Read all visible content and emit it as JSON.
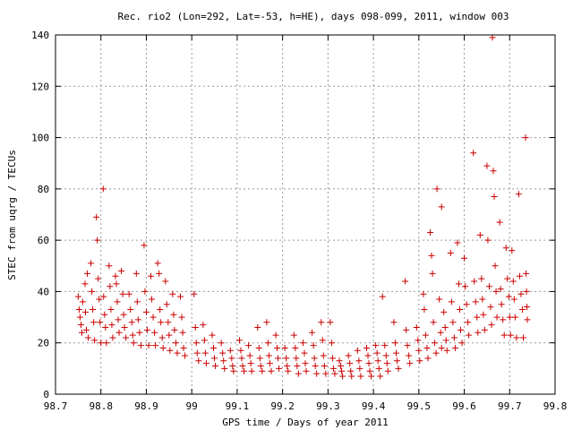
{
  "chart_data": {
    "type": "scatter",
    "title": "Rec. rio2 (Lon=292, Lat=-53, h=HE), days 098-099, 2011, window 003",
    "xlabel": "GPS time / Days of year 2011",
    "ylabel": "STEC from uqrg / TECUs",
    "xlim": [
      98.7,
      99.8
    ],
    "ylim": [
      0,
      140
    ],
    "xticks": [
      "98.7",
      "98.8",
      "98.9",
      "99",
      "99.1",
      "99.2",
      "99.3",
      "99.4",
      "99.5",
      "99.6",
      "99.7",
      "99.8"
    ],
    "yticks": [
      "0",
      "20",
      "40",
      "60",
      "80",
      "100",
      "120",
      "140"
    ],
    "grid": true,
    "marker": "+",
    "color": "#cc0000",
    "points": [
      [
        98.75,
        38
      ],
      [
        98.752,
        33
      ],
      [
        98.754,
        30
      ],
      [
        98.756,
        27
      ],
      [
        98.758,
        24
      ],
      [
        98.76,
        36
      ],
      [
        98.765,
        43
      ],
      [
        98.766,
        32
      ],
      [
        98.768,
        25
      ],
      [
        98.77,
        47
      ],
      [
        98.772,
        22
      ],
      [
        98.778,
        51
      ],
      [
        98.78,
        40
      ],
      [
        98.782,
        33
      ],
      [
        98.784,
        28
      ],
      [
        98.786,
        21
      ],
      [
        98.79,
        69
      ],
      [
        98.792,
        60
      ],
      [
        98.794,
        45
      ],
      [
        98.796,
        37
      ],
      [
        98.798,
        28
      ],
      [
        98.8,
        20
      ],
      [
        98.805,
        80
      ],
      [
        98.806,
        38
      ],
      [
        98.808,
        31
      ],
      [
        98.81,
        26
      ],
      [
        98.812,
        20
      ],
      [
        98.818,
        50
      ],
      [
        98.82,
        42
      ],
      [
        98.822,
        33
      ],
      [
        98.824,
        27
      ],
      [
        98.826,
        22
      ],
      [
        98.832,
        46
      ],
      [
        98.834,
        43
      ],
      [
        98.836,
        36
      ],
      [
        98.838,
        29
      ],
      [
        98.84,
        24
      ],
      [
        98.845,
        48
      ],
      [
        98.848,
        39
      ],
      [
        98.85,
        31
      ],
      [
        98.852,
        26
      ],
      [
        98.855,
        22
      ],
      [
        98.862,
        39
      ],
      [
        98.865,
        33
      ],
      [
        98.868,
        28
      ],
      [
        98.87,
        23
      ],
      [
        98.872,
        20
      ],
      [
        98.878,
        47
      ],
      [
        98.88,
        36
      ],
      [
        98.882,
        29
      ],
      [
        98.885,
        24
      ],
      [
        98.888,
        19
      ],
      [
        98.895,
        58
      ],
      [
        98.897,
        40
      ],
      [
        98.9,
        32
      ],
      [
        98.902,
        25
      ],
      [
        98.905,
        19
      ],
      [
        98.91,
        46
      ],
      [
        98.912,
        37
      ],
      [
        98.915,
        30
      ],
      [
        98.918,
        24
      ],
      [
        98.92,
        19
      ],
      [
        98.925,
        51
      ],
      [
        98.928,
        47
      ],
      [
        98.93,
        33
      ],
      [
        98.932,
        28
      ],
      [
        98.935,
        22
      ],
      [
        98.937,
        18
      ],
      [
        98.942,
        44
      ],
      [
        98.945,
        35
      ],
      [
        98.948,
        28
      ],
      [
        98.95,
        23
      ],
      [
        98.952,
        17
      ],
      [
        98.958,
        39
      ],
      [
        98.96,
        31
      ],
      [
        98.962,
        25
      ],
      [
        98.965,
        20
      ],
      [
        98.968,
        16
      ],
      [
        98.975,
        38
      ],
      [
        98.978,
        30
      ],
      [
        98.98,
        24
      ],
      [
        98.982,
        18
      ],
      [
        98.985,
        15
      ],
      [
        99.005,
        39
      ],
      [
        99.008,
        26
      ],
      [
        99.01,
        20
      ],
      [
        99.012,
        16
      ],
      [
        99.015,
        13
      ],
      [
        99.025,
        27
      ],
      [
        99.028,
        21
      ],
      [
        99.03,
        16
      ],
      [
        99.032,
        12
      ],
      [
        99.045,
        23
      ],
      [
        99.048,
        18
      ],
      [
        99.05,
        14
      ],
      [
        99.052,
        11
      ],
      [
        99.065,
        20
      ],
      [
        99.068,
        16
      ],
      [
        99.07,
        13
      ],
      [
        99.072,
        10
      ],
      [
        99.085,
        17
      ],
      [
        99.088,
        14
      ],
      [
        99.09,
        11
      ],
      [
        99.092,
        9
      ],
      [
        99.105,
        21
      ],
      [
        99.108,
        17
      ],
      [
        99.11,
        14
      ],
      [
        99.112,
        11
      ],
      [
        99.115,
        9
      ],
      [
        99.125,
        19
      ],
      [
        99.128,
        15
      ],
      [
        99.13,
        12
      ],
      [
        99.132,
        9
      ],
      [
        99.145,
        26
      ],
      [
        99.148,
        18
      ],
      [
        99.15,
        14
      ],
      [
        99.152,
        11
      ],
      [
        99.155,
        9
      ],
      [
        99.165,
        28
      ],
      [
        99.168,
        20
      ],
      [
        99.17,
        15
      ],
      [
        99.172,
        12
      ],
      [
        99.175,
        9
      ],
      [
        99.185,
        23
      ],
      [
        99.188,
        18
      ],
      [
        99.19,
        14
      ],
      [
        99.192,
        10
      ],
      [
        99.205,
        18
      ],
      [
        99.208,
        14
      ],
      [
        99.21,
        11
      ],
      [
        99.212,
        9
      ],
      [
        99.225,
        23
      ],
      [
        99.228,
        18
      ],
      [
        99.23,
        14
      ],
      [
        99.232,
        11
      ],
      [
        99.235,
        8
      ],
      [
        99.245,
        20
      ],
      [
        99.248,
        16
      ],
      [
        99.25,
        12
      ],
      [
        99.252,
        9
      ],
      [
        99.265,
        24
      ],
      [
        99.268,
        19
      ],
      [
        99.27,
        14
      ],
      [
        99.272,
        11
      ],
      [
        99.275,
        8
      ],
      [
        99.285,
        28
      ],
      [
        99.288,
        21
      ],
      [
        99.29,
        15
      ],
      [
        99.292,
        11
      ],
      [
        99.295,
        8
      ],
      [
        99.305,
        28
      ],
      [
        99.308,
        20
      ],
      [
        99.31,
        14
      ],
      [
        99.312,
        10
      ],
      [
        99.315,
        8
      ],
      [
        99.325,
        13
      ],
      [
        99.328,
        11
      ],
      [
        99.33,
        9
      ],
      [
        99.332,
        7
      ],
      [
        99.345,
        15
      ],
      [
        99.348,
        12
      ],
      [
        99.35,
        9
      ],
      [
        99.352,
        7
      ],
      [
        99.365,
        17
      ],
      [
        99.368,
        13
      ],
      [
        99.37,
        10
      ],
      [
        99.372,
        7
      ],
      [
        99.385,
        18
      ],
      [
        99.388,
        15
      ],
      [
        99.39,
        12
      ],
      [
        99.392,
        9
      ],
      [
        99.395,
        7
      ],
      [
        99.405,
        19
      ],
      [
        99.408,
        16
      ],
      [
        99.41,
        13
      ],
      [
        99.412,
        10
      ],
      [
        99.415,
        7
      ],
      [
        99.42,
        38
      ],
      [
        99.425,
        19
      ],
      [
        99.428,
        15
      ],
      [
        99.43,
        12
      ],
      [
        99.432,
        9
      ],
      [
        99.445,
        28
      ],
      [
        99.448,
        20
      ],
      [
        99.45,
        16
      ],
      [
        99.452,
        13
      ],
      [
        99.455,
        10
      ],
      [
        99.47,
        44
      ],
      [
        99.472,
        25
      ],
      [
        99.475,
        19
      ],
      [
        99.478,
        15
      ],
      [
        99.48,
        12
      ],
      [
        99.495,
        26
      ],
      [
        99.498,
        21
      ],
      [
        99.5,
        17
      ],
      [
        99.502,
        13
      ],
      [
        99.51,
        39
      ],
      [
        99.512,
        33
      ],
      [
        99.515,
        23
      ],
      [
        99.518,
        18
      ],
      [
        99.52,
        14
      ],
      [
        99.525,
        63
      ],
      [
        99.528,
        54
      ],
      [
        99.53,
        47
      ],
      [
        99.532,
        28
      ],
      [
        99.535,
        20
      ],
      [
        99.538,
        16
      ],
      [
        99.54,
        80
      ],
      [
        99.545,
        37
      ],
      [
        99.548,
        24
      ],
      [
        99.55,
        18
      ],
      [
        99.55,
        73
      ],
      [
        99.555,
        32
      ],
      [
        99.558,
        26
      ],
      [
        99.56,
        21
      ],
      [
        99.562,
        17
      ],
      [
        99.57,
        55
      ],
      [
        99.572,
        36
      ],
      [
        99.575,
        28
      ],
      [
        99.578,
        22
      ],
      [
        99.58,
        18
      ],
      [
        99.585,
        59
      ],
      [
        99.588,
        43
      ],
      [
        99.59,
        33
      ],
      [
        99.592,
        25
      ],
      [
        99.595,
        20
      ],
      [
        99.6,
        53
      ],
      [
        99.602,
        42
      ],
      [
        99.605,
        35
      ],
      [
        99.608,
        28
      ],
      [
        99.61,
        23
      ],
      [
        99.62,
        94
      ],
      [
        99.622,
        44
      ],
      [
        99.625,
        36
      ],
      [
        99.628,
        30
      ],
      [
        99.63,
        24
      ],
      [
        99.635,
        62
      ],
      [
        99.638,
        45
      ],
      [
        99.64,
        37
      ],
      [
        99.642,
        31
      ],
      [
        99.645,
        25
      ],
      [
        99.65,
        89
      ],
      [
        99.652,
        60
      ],
      [
        99.655,
        42
      ],
      [
        99.658,
        34
      ],
      [
        99.66,
        27
      ],
      [
        99.662,
        139
      ],
      [
        99.664,
        87
      ],
      [
        99.666,
        77
      ],
      [
        99.668,
        50
      ],
      [
        99.67,
        40
      ],
      [
        99.672,
        30
      ],
      [
        99.678,
        67
      ],
      [
        99.68,
        41
      ],
      [
        99.682,
        35
      ],
      [
        99.685,
        29
      ],
      [
        99.688,
        23
      ],
      [
        99.692,
        57
      ],
      [
        99.695,
        45
      ],
      [
        99.698,
        38
      ],
      [
        99.7,
        30
      ],
      [
        99.702,
        23
      ],
      [
        99.705,
        56
      ],
      [
        99.708,
        44
      ],
      [
        99.71,
        37
      ],
      [
        99.712,
        30
      ],
      [
        99.715,
        22
      ],
      [
        99.72,
        78
      ],
      [
        99.722,
        46
      ],
      [
        99.725,
        39
      ],
      [
        99.728,
        33
      ],
      [
        99.73,
        22
      ],
      [
        99.735,
        100
      ],
      [
        99.736,
        47
      ],
      [
        99.737,
        40
      ],
      [
        99.738,
        34
      ],
      [
        99.739,
        29
      ]
    ]
  }
}
